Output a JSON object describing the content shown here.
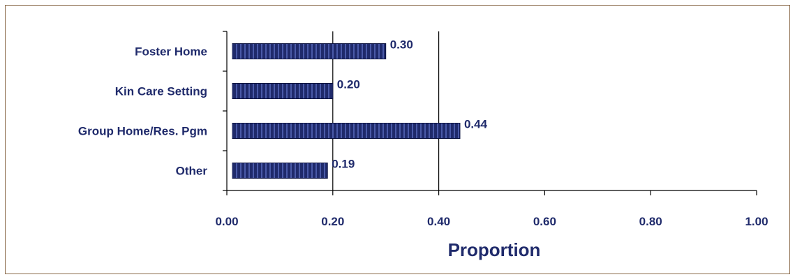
{
  "chart_data": {
    "type": "bar",
    "orientation": "horizontal",
    "categories": [
      "Foster Home",
      "Kin Care Setting",
      "Group Home/Res. Pgm",
      "Other"
    ],
    "values": [
      0.3,
      0.2,
      0.44,
      0.19
    ],
    "data_labels": [
      "0.30",
      "0.20",
      "0.44",
      "0.19"
    ],
    "xlabel": "Proportion",
    "xlim": [
      0,
      1
    ],
    "x_ticks": [
      0,
      0.2,
      0.4,
      0.6,
      0.8,
      1.0
    ],
    "x_tick_labels": [
      "0.00",
      "0.20",
      "0.40",
      "0.60",
      "0.80",
      "1.00"
    ],
    "grid": "vertical lines at 0.20 and 0.40",
    "legend": "none",
    "colors": {
      "bar_fill": "#1f2a6b",
      "bar_stripe": "#4a5aa8",
      "text": "#1f2a6b",
      "frame_border": "#8a6a4a",
      "axis": "#000000"
    }
  }
}
